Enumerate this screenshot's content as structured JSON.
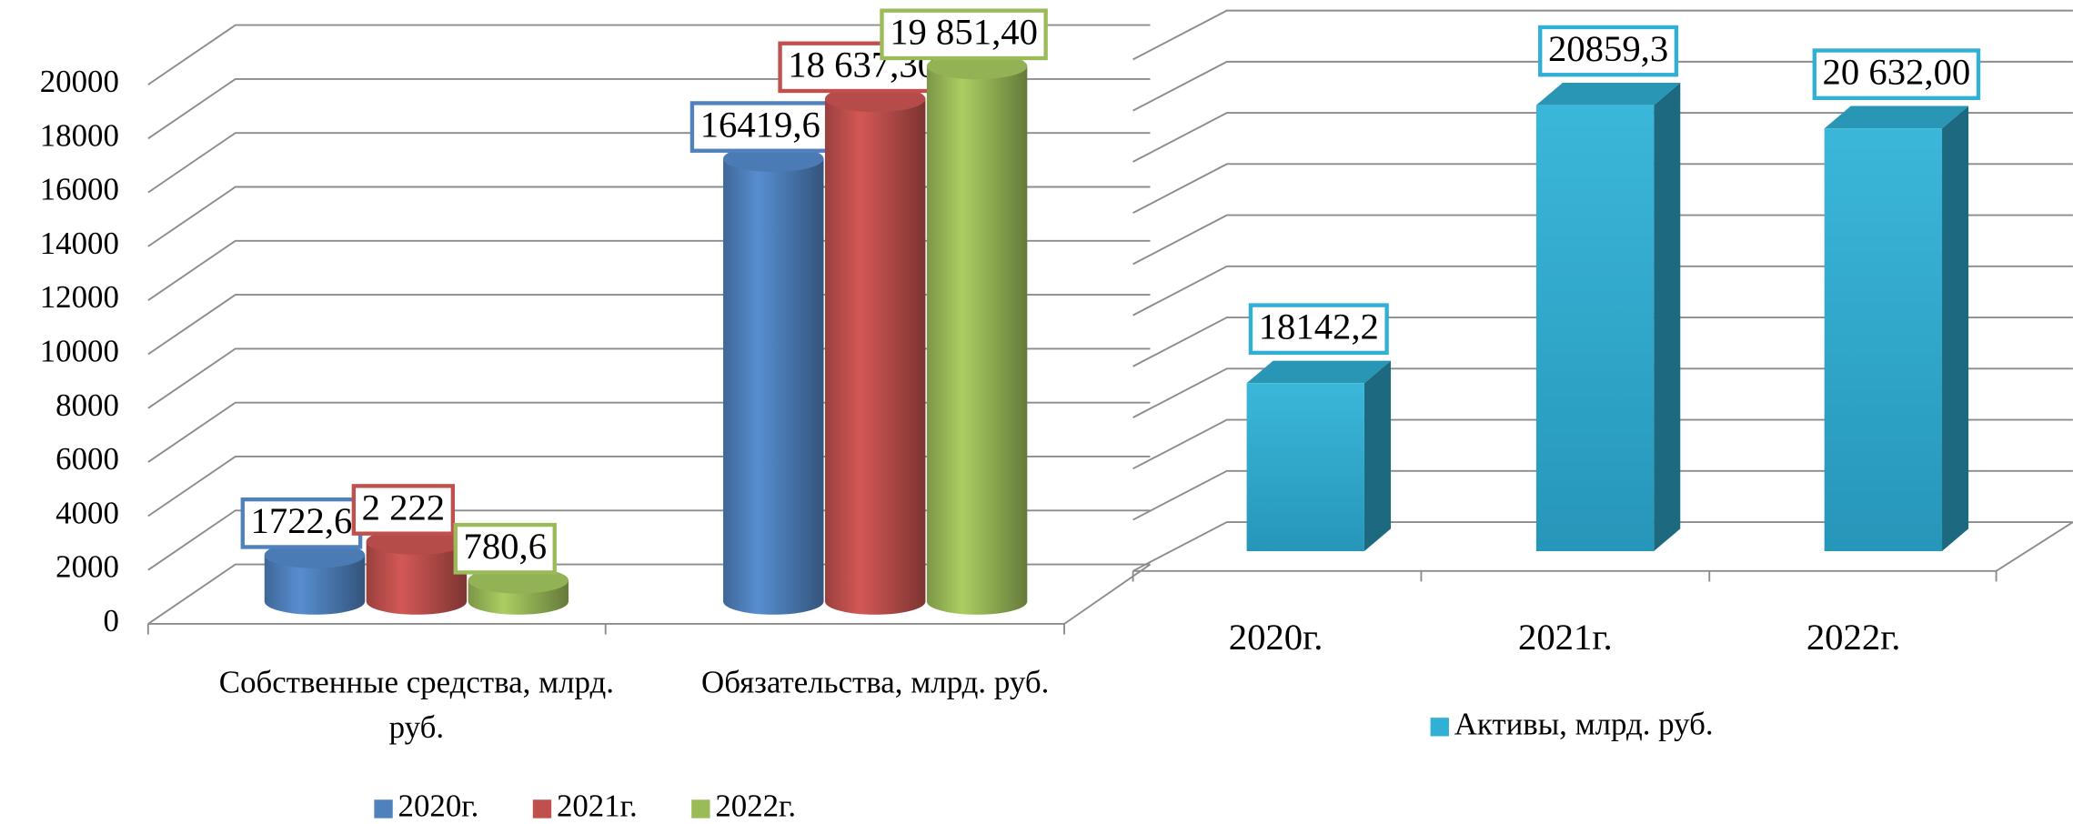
{
  "chart_data": [
    {
      "type": "cylinder-bar",
      "categories": [
        "Собственные средства, млрд. руб.",
        "Обязательства, млрд. руб."
      ],
      "series": [
        {
          "name": "2020г.",
          "color": "#4f81bd",
          "values": [
            1722.6,
            16419.6
          ],
          "value_labels": [
            "1722,6",
            "16419,6"
          ]
        },
        {
          "name": "2021г.",
          "color": "#c0504d",
          "values": [
            2222,
            18637.3
          ],
          "value_labels": [
            "2 222",
            "18 637,30"
          ]
        },
        {
          "name": "2022г.",
          "color": "#9bbb59",
          "values": [
            780.6,
            19851.4
          ],
          "value_labels": [
            "780,6",
            "19 851,40"
          ]
        }
      ],
      "ylim": [
        0,
        20000
      ],
      "yticks": [
        0,
        2000,
        4000,
        6000,
        8000,
        10000,
        12000,
        14000,
        16000,
        18000,
        20000
      ],
      "grid": true,
      "legend": "bottom"
    },
    {
      "type": "bar3d",
      "categories": [
        "2020г.",
        "2021г.",
        "2022г."
      ],
      "series": [
        {
          "name": "Активы, млрд. руб.",
          "color": "#31b0d5",
          "values": [
            18142.2,
            20859.3,
            20632
          ],
          "value_labels": [
            "18142,2",
            "20859,3",
            "20 632,00"
          ]
        }
      ],
      "ylim": [
        16500,
        21500
      ],
      "yticks": [
        16500,
        17000,
        17500,
        18000,
        18500,
        19000,
        19500,
        20000,
        20500,
        21000,
        21500
      ],
      "tick_labels": false,
      "grid": true,
      "legend": "bottom"
    }
  ]
}
